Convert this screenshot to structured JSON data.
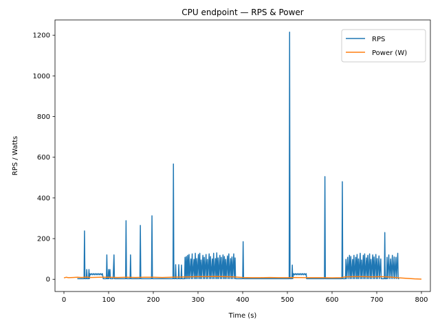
{
  "chart_data": {
    "type": "line",
    "title": "CPU endpoint — RPS & Power",
    "xlabel": "Time (s)",
    "ylabel": "RPS / Watts",
    "xlim": [
      -20,
      820
    ],
    "ylim": [
      -60,
      1275
    ],
    "xticks": [
      0,
      100,
      200,
      300,
      400,
      500,
      600,
      700,
      800
    ],
    "yticks": [
      0,
      200,
      400,
      600,
      800,
      1000,
      1200
    ],
    "grid": false,
    "legend": "top-right",
    "series": [
      {
        "name": "RPS",
        "color": "#1f77b4",
        "points": [
          [
            30,
            3
          ],
          [
            45,
            3
          ],
          [
            46,
            238
          ],
          [
            47,
            3
          ],
          [
            50,
            3
          ],
          [
            51,
            48
          ],
          [
            52,
            3
          ],
          [
            55,
            3
          ],
          [
            56,
            48
          ],
          [
            57,
            3
          ],
          [
            58,
            28
          ],
          [
            60,
            22
          ],
          [
            62,
            28
          ],
          [
            64,
            22
          ],
          [
            66,
            28
          ],
          [
            68,
            22
          ],
          [
            70,
            28
          ],
          [
            72,
            22
          ],
          [
            74,
            28
          ],
          [
            76,
            22
          ],
          [
            78,
            28
          ],
          [
            80,
            22
          ],
          [
            82,
            28
          ],
          [
            84,
            22
          ],
          [
            86,
            28
          ],
          [
            88,
            3
          ],
          [
            95,
            3
          ],
          [
            96,
            120
          ],
          [
            97,
            3
          ],
          [
            99,
            3
          ],
          [
            100,
            48
          ],
          [
            101,
            3
          ],
          [
            103,
            48
          ],
          [
            104,
            3
          ],
          [
            110,
            3
          ],
          [
            112,
            120
          ],
          [
            113,
            3
          ],
          [
            138,
            3
          ],
          [
            139,
            288
          ],
          [
            140,
            3
          ],
          [
            148,
            3
          ],
          [
            149,
            120
          ],
          [
            150,
            3
          ],
          [
            170,
            3
          ],
          [
            171,
            265
          ],
          [
            172,
            3
          ],
          [
            196,
            3
          ],
          [
            197,
            312
          ],
          [
            198,
            3
          ],
          [
            244,
            3
          ],
          [
            245,
            567
          ],
          [
            246,
            3
          ],
          [
            249,
            3
          ],
          [
            250,
            72
          ],
          [
            251,
            3
          ],
          [
            256,
            3
          ],
          [
            257,
            72
          ],
          [
            258,
            3
          ],
          [
            262,
            3
          ],
          [
            263,
            70
          ],
          [
            264,
            3
          ],
          [
            270,
            3
          ],
          [
            271,
            108
          ],
          [
            272,
            3
          ],
          [
            274,
            112
          ],
          [
            275,
            3
          ],
          [
            277,
            118
          ],
          [
            278,
            3
          ],
          [
            280,
            122
          ],
          [
            281,
            3
          ],
          [
            284,
            100
          ],
          [
            285,
            3
          ],
          [
            287,
            125
          ],
          [
            288,
            3
          ],
          [
            291,
            98
          ],
          [
            292,
            3
          ],
          [
            294,
            128
          ],
          [
            295,
            3
          ],
          [
            297,
            102
          ],
          [
            298,
            3
          ],
          [
            301,
            122
          ],
          [
            302,
            3
          ],
          [
            304,
            128
          ],
          [
            305,
            3
          ],
          [
            307,
            95
          ],
          [
            308,
            3
          ],
          [
            311,
            118
          ],
          [
            312,
            3
          ],
          [
            314,
            108
          ],
          [
            315,
            3
          ],
          [
            318,
            122
          ],
          [
            319,
            3
          ],
          [
            321,
            98
          ],
          [
            322,
            3
          ],
          [
            325,
            125
          ],
          [
            326,
            3
          ],
          [
            328,
            112
          ],
          [
            329,
            3
          ],
          [
            332,
            100
          ],
          [
            333,
            3
          ],
          [
            335,
            128
          ],
          [
            336,
            3
          ],
          [
            339,
            102
          ],
          [
            340,
            3
          ],
          [
            342,
            130
          ],
          [
            343,
            3
          ],
          [
            345,
            105
          ],
          [
            346,
            3
          ],
          [
            349,
            118
          ],
          [
            350,
            3
          ],
          [
            352,
            108
          ],
          [
            353,
            3
          ],
          [
            356,
            120
          ],
          [
            357,
            3
          ],
          [
            359,
            112
          ],
          [
            360,
            3
          ],
          [
            362,
            98
          ],
          [
            363,
            3
          ],
          [
            366,
            115
          ],
          [
            367,
            3
          ],
          [
            369,
            125
          ],
          [
            370,
            3
          ],
          [
            373,
            102
          ],
          [
            374,
            3
          ],
          [
            376,
            110
          ],
          [
            377,
            3
          ],
          [
            380,
            125
          ],
          [
            381,
            3
          ],
          [
            383,
            105
          ],
          [
            384,
            3
          ],
          [
            400,
            3
          ],
          [
            401,
            185
          ],
          [
            402,
            3
          ],
          [
            504,
            3
          ],
          [
            505,
            1215
          ],
          [
            506,
            3
          ],
          [
            510,
            3
          ],
          [
            511,
            70
          ],
          [
            512,
            3
          ],
          [
            514,
            28
          ],
          [
            516,
            22
          ],
          [
            518,
            28
          ],
          [
            520,
            22
          ],
          [
            522,
            28
          ],
          [
            524,
            22
          ],
          [
            526,
            28
          ],
          [
            528,
            22
          ],
          [
            530,
            28
          ],
          [
            532,
            22
          ],
          [
            534,
            28
          ],
          [
            536,
            22
          ],
          [
            538,
            28
          ],
          [
            540,
            22
          ],
          [
            542,
            28
          ],
          [
            543,
            3
          ],
          [
            583,
            3
          ],
          [
            584,
            505
          ],
          [
            585,
            3
          ],
          [
            622,
            3
          ],
          [
            623,
            480
          ],
          [
            624,
            3
          ],
          [
            630,
            3
          ],
          [
            631,
            98
          ],
          [
            632,
            3
          ],
          [
            635,
            108
          ],
          [
            636,
            3
          ],
          [
            639,
            118
          ],
          [
            640,
            3
          ],
          [
            642,
            112
          ],
          [
            643,
            3
          ],
          [
            646,
            98
          ],
          [
            647,
            3
          ],
          [
            649,
            118
          ],
          [
            650,
            3
          ],
          [
            653,
            108
          ],
          [
            654,
            3
          ],
          [
            656,
            122
          ],
          [
            657,
            3
          ],
          [
            659,
            100
          ],
          [
            660,
            3
          ],
          [
            663,
            128
          ],
          [
            664,
            3
          ],
          [
            666,
            95
          ],
          [
            667,
            3
          ],
          [
            670,
            118
          ],
          [
            671,
            3
          ],
          [
            673,
            125
          ],
          [
            674,
            3
          ],
          [
            677,
            105
          ],
          [
            678,
            3
          ],
          [
            680,
            118
          ],
          [
            681,
            3
          ],
          [
            684,
            125
          ],
          [
            685,
            3
          ],
          [
            687,
            98
          ],
          [
            688,
            3
          ],
          [
            691,
            120
          ],
          [
            692,
            3
          ],
          [
            694,
            110
          ],
          [
            695,
            3
          ],
          [
            698,
            122
          ],
          [
            699,
            3
          ],
          [
            701,
            102
          ],
          [
            702,
            3
          ],
          [
            705,
            115
          ],
          [
            706,
            3
          ],
          [
            709,
            100
          ],
          [
            710,
            3
          ],
          [
            717,
            3
          ],
          [
            718,
            230
          ],
          [
            719,
            3
          ],
          [
            722,
            3
          ],
          [
            723,
            108
          ],
          [
            724,
            3
          ],
          [
            727,
            120
          ],
          [
            728,
            3
          ],
          [
            731,
            100
          ],
          [
            732,
            3
          ],
          [
            735,
            118
          ],
          [
            736,
            3
          ],
          [
            739,
            110
          ],
          [
            740,
            3
          ],
          [
            743,
            108
          ],
          [
            744,
            3
          ],
          [
            747,
            128
          ],
          [
            748,
            3
          ],
          [
            750,
            3
          ]
        ]
      },
      {
        "name": "Power (W)",
        "color": "#ff7f0e",
        "points": [
          [
            0,
            7
          ],
          [
            5,
            10
          ],
          [
            10,
            8
          ],
          [
            20,
            9
          ],
          [
            30,
            10
          ],
          [
            40,
            9
          ],
          [
            50,
            11
          ],
          [
            60,
            9
          ],
          [
            80,
            10
          ],
          [
            100,
            10
          ],
          [
            120,
            9
          ],
          [
            140,
            10
          ],
          [
            160,
            9
          ],
          [
            180,
            10
          ],
          [
            200,
            10
          ],
          [
            220,
            9
          ],
          [
            240,
            10
          ],
          [
            260,
            11
          ],
          [
            280,
            12
          ],
          [
            300,
            13
          ],
          [
            320,
            13
          ],
          [
            340,
            14
          ],
          [
            360,
            13
          ],
          [
            380,
            12
          ],
          [
            400,
            9
          ],
          [
            420,
            8
          ],
          [
            440,
            8
          ],
          [
            460,
            9
          ],
          [
            480,
            8
          ],
          [
            500,
            8
          ],
          [
            520,
            9
          ],
          [
            540,
            8
          ],
          [
            560,
            8
          ],
          [
            580,
            8
          ],
          [
            600,
            7
          ],
          [
            620,
            8
          ],
          [
            630,
            12
          ],
          [
            650,
            13
          ],
          [
            670,
            13
          ],
          [
            690,
            12
          ],
          [
            710,
            13
          ],
          [
            730,
            11
          ],
          [
            750,
            7
          ],
          [
            770,
            4
          ],
          [
            785,
            2
          ],
          [
            800,
            1
          ]
        ]
      }
    ]
  }
}
